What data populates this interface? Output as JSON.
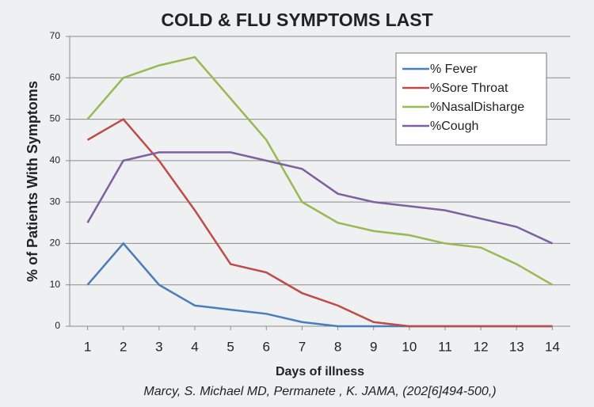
{
  "chart_data": {
    "type": "line",
    "title": "COLD & FLU SYMPTOMS LAST",
    "source": "Marcy, S. Michael MD, Permanete , K. JAMA, (202[6]494-500,)",
    "xlabel": "Days of illness",
    "ylabel": "% of Patients With Symptoms",
    "x": [
      1,
      2,
      3,
      4,
      5,
      6,
      7,
      8,
      9,
      10,
      11,
      12,
      13,
      14
    ],
    "xlim": [
      0.5,
      14.5
    ],
    "xticks": [
      1,
      2,
      3,
      4,
      5,
      6,
      7,
      8,
      9,
      10,
      11,
      12,
      13,
      14
    ],
    "ylim": [
      0,
      70
    ],
    "yticks": [
      0,
      10,
      20,
      30,
      40,
      50,
      60,
      70
    ],
    "grid": true,
    "legend": "upper right",
    "series": [
      {
        "name": "% Fever",
        "color": "#4a7ebb",
        "values": [
          10,
          20,
          10,
          5,
          4,
          3,
          1,
          0,
          0,
          0,
          0,
          0,
          0,
          0
        ]
      },
      {
        "name": "%Sore Throat",
        "color": "#be4b48",
        "values": [
          45,
          50,
          40,
          28,
          15,
          13,
          8,
          5,
          1,
          0,
          0,
          0,
          0,
          0
        ]
      },
      {
        "name": "%NasalDisharge",
        "color": "#98b954",
        "values": [
          50,
          60,
          63,
          65,
          55,
          45,
          30,
          25,
          23,
          22,
          20,
          19,
          15,
          10
        ]
      },
      {
        "name": "%Cough",
        "color": "#7d60a0",
        "values": [
          25,
          40,
          42,
          42,
          42,
          40,
          38,
          32,
          30,
          29,
          28,
          26,
          24,
          20
        ]
      }
    ]
  }
}
